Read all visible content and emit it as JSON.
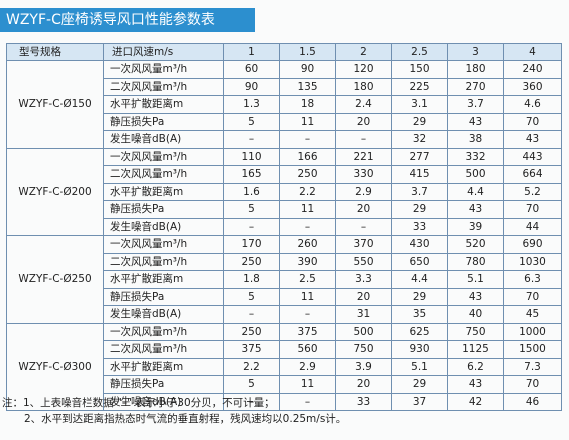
{
  "title": "WZYF-C座椅诱导风口性能参数表",
  "header": {
    "model_label": "型号规格",
    "speed_label": "进口风速m/s",
    "speeds": [
      "1",
      "1.5",
      "2",
      "2.5",
      "3",
      "4"
    ]
  },
  "groups": [
    {
      "model": "WZYF-C-Ø150",
      "rows": [
        {
          "param": "一次风风量m³/h",
          "values": [
            "60",
            "90",
            "120",
            "150",
            "180",
            "240"
          ]
        },
        {
          "param": "二次风风量m³/h",
          "values": [
            "90",
            "135",
            "180",
            "225",
            "270",
            "360"
          ]
        },
        {
          "param": "水平扩散距离m",
          "values": [
            "1.3",
            "18",
            "2.4",
            "3.1",
            "3.7",
            "4.6"
          ]
        },
        {
          "param": "静压损失Pa",
          "values": [
            "5",
            "11",
            "20",
            "29",
            "43",
            "70"
          ]
        },
        {
          "param": "发生噪音dB(A)",
          "values": [
            "–",
            "–",
            "–",
            "32",
            "38",
            "43"
          ]
        }
      ]
    },
    {
      "model": "WZYF-C-Ø200",
      "rows": [
        {
          "param": "一次风风量m³/h",
          "values": [
            "110",
            "166",
            "221",
            "277",
            "332",
            "443"
          ]
        },
        {
          "param": "二次风风量m³/h",
          "values": [
            "165",
            "250",
            "330",
            "415",
            "500",
            "664"
          ]
        },
        {
          "param": "水平扩散距离m",
          "values": [
            "1.6",
            "2.2",
            "2.9",
            "3.7",
            "4.4",
            "5.2"
          ]
        },
        {
          "param": "静压损失Pa",
          "values": [
            "5",
            "11",
            "20",
            "29",
            "43",
            "70"
          ]
        },
        {
          "param": "发生噪音dB(A)",
          "values": [
            "–",
            "–",
            "–",
            "33",
            "39",
            "44"
          ]
        }
      ]
    },
    {
      "model": "WZYF-C-Ø250",
      "rows": [
        {
          "param": "一次风风量m³/h",
          "values": [
            "170",
            "260",
            "370",
            "430",
            "520",
            "690"
          ]
        },
        {
          "param": "二次风风量m³/h",
          "values": [
            "250",
            "390",
            "550",
            "650",
            "780",
            "1030"
          ]
        },
        {
          "param": "水平扩散距离m",
          "values": [
            "1.8",
            "2.5",
            "3.3",
            "4.4",
            "5.1",
            "6.3"
          ]
        },
        {
          "param": "静压损失Pa",
          "values": [
            "5",
            "11",
            "20",
            "29",
            "43",
            "70"
          ]
        },
        {
          "param": "发生噪音dB(A)",
          "values": [
            "–",
            "–",
            "31",
            "35",
            "40",
            "45"
          ]
        }
      ]
    },
    {
      "model": "WZYF-C-Ø300",
      "rows": [
        {
          "param": "一次风风量m³/h",
          "values": [
            "250",
            "375",
            "500",
            "625",
            "750",
            "1000"
          ]
        },
        {
          "param": "二次风风量m³/h",
          "values": [
            "375",
            "560",
            "750",
            "930",
            "1125",
            "1500"
          ]
        },
        {
          "param": "水平扩散距离m",
          "values": [
            "2.2",
            "2.9",
            "3.9",
            "5.1",
            "6.2",
            "7.3"
          ]
        },
        {
          "param": "静压损失Pa",
          "values": [
            "5",
            "11",
            "20",
            "29",
            "43",
            "70"
          ]
        },
        {
          "param": "发生噪音dB(A)",
          "values": [
            "–",
            "–",
            "33",
            "37",
            "42",
            "46"
          ]
        }
      ]
    }
  ],
  "notes": [
    "注：1、上表噪音栏数据 \"–\" 表示小于30分贝，不可计量；",
    "2、水平到达距离指热态时气流的垂直射程，残风速均以0.25m/s计。"
  ],
  "colors": {
    "title_bg": "#2c8fcf",
    "header_bg": "#d6e6f3",
    "border": "#6f8fb0"
  }
}
